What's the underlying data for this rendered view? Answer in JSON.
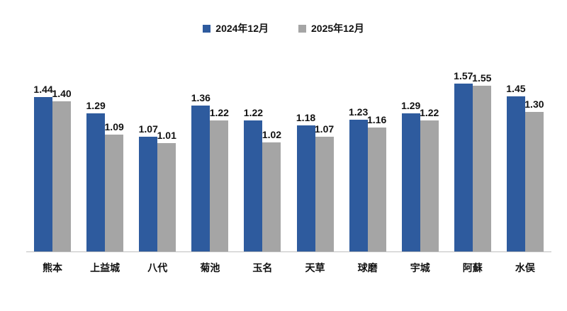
{
  "legend": {
    "items": [
      {
        "label": "2024年12月",
        "color": "#2E5B9E"
      },
      {
        "label": "2025年12月",
        "color": "#A5A5A5"
      }
    ]
  },
  "chart_data": {
    "type": "bar",
    "categories": [
      "熊本",
      "上益城",
      "八代",
      "菊池",
      "玉名",
      "天草",
      "球磨",
      "宇城",
      "阿蘇",
      "水俣"
    ],
    "series": [
      {
        "name": "2024年12月",
        "color": "#2E5B9E",
        "values": [
          1.44,
          1.29,
          1.07,
          1.36,
          1.22,
          1.18,
          1.23,
          1.29,
          1.57,
          1.45
        ]
      },
      {
        "name": "2025年12月",
        "color": "#A5A5A5",
        "values": [
          1.4,
          1.09,
          1.01,
          1.22,
          1.02,
          1.07,
          1.16,
          1.22,
          1.55,
          1.3
        ]
      }
    ],
    "title": "",
    "xlabel": "",
    "ylabel": "",
    "ylim": [
      0,
      1.6
    ],
    "value_labels": true,
    "value_label_decimals": 2,
    "grid": false,
    "legend_position": "top",
    "axis_line_color": "#BFBFBF",
    "text_color": "#111111"
  }
}
